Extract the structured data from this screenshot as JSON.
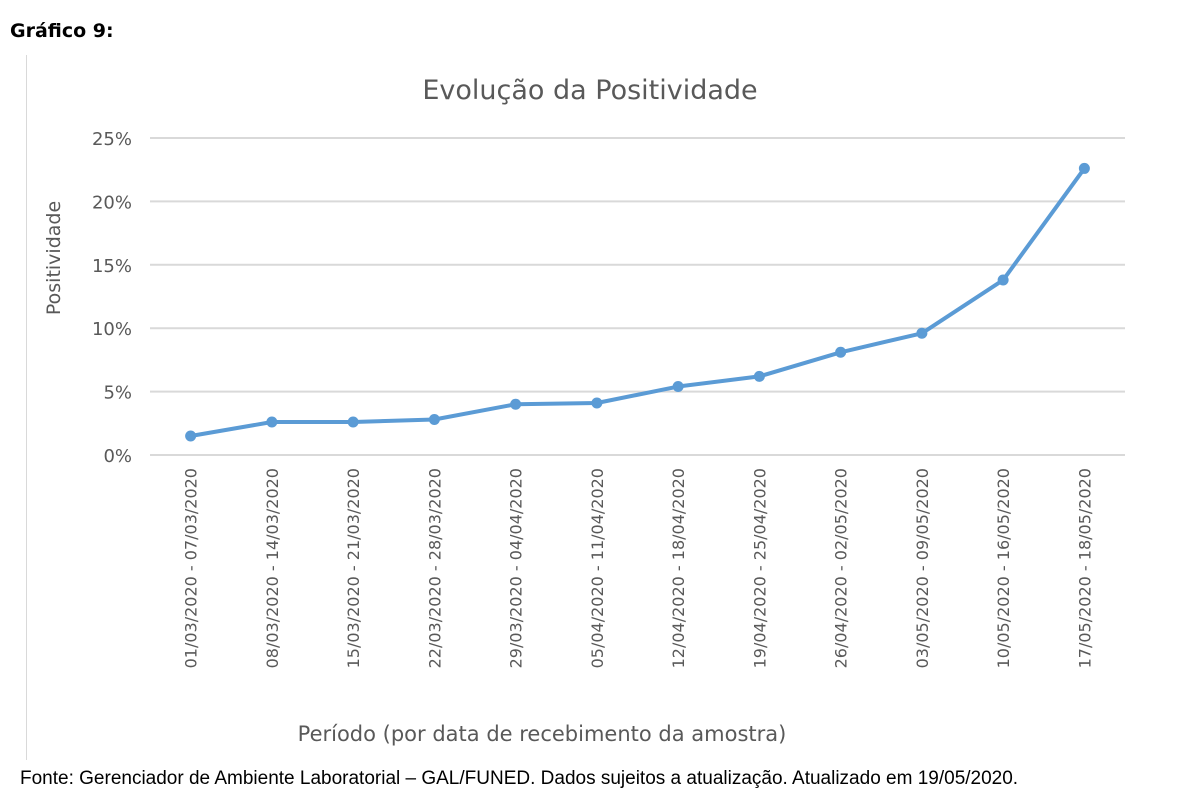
{
  "figure_label": "Gráfico 9:",
  "source_note": "Fonte: Gerenciador de Ambiente Laboratorial – GAL/FUNED. Dados sujeitos a atualização. Atualizado em 19/05/2020.",
  "colors": {
    "series": "#5b9bd5",
    "gridline": "#d9d9d9",
    "text": "#595959"
  },
  "chart_data": {
    "type": "line",
    "title": "Evolução da Positividade",
    "xlabel": "Período (por data de recebimento da amostra)",
    "ylabel": "Positividade",
    "ylim": [
      0,
      25
    ],
    "y_ticks": [
      "0%",
      "5%",
      "10%",
      "15%",
      "20%",
      "25%"
    ],
    "y_tick_values": [
      0,
      5,
      10,
      15,
      20,
      25
    ],
    "grid": true,
    "legend": "none",
    "categories": [
      "01/03/2020 - 07/03/2020",
      "08/03/2020 - 14/03/2020",
      "15/03/2020 - 21/03/2020",
      "22/03/2020 - 28/03/2020",
      "29/03/2020 - 04/04/2020",
      "05/04/2020 - 11/04/2020",
      "12/04/2020 - 18/04/2020",
      "19/04/2020 - 25/04/2020",
      "26/04/2020 - 02/05/2020",
      "03/05/2020 - 09/05/2020",
      "10/05/2020 - 16/05/2020",
      "17/05/2020 - 18/05/2020"
    ],
    "series": [
      {
        "values": [
          1.5,
          2.6,
          2.6,
          2.8,
          4.0,
          4.1,
          5.4,
          6.2,
          8.1,
          9.6,
          13.8,
          22.6
        ]
      }
    ]
  }
}
